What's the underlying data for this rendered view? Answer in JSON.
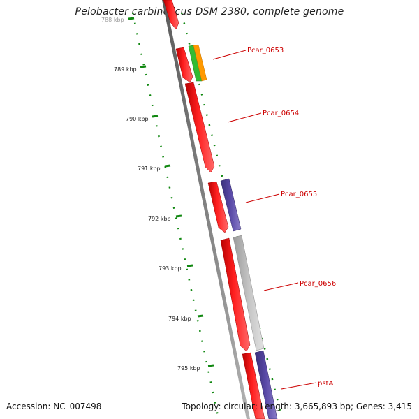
{
  "title": "Pelobacter carbinolicus DSM 2380, complete genome",
  "footer": {
    "accession": "Accession: NC_007498",
    "summary": "Topology: circular; Length: 3,665,893 bp; Genes: 3,415"
  },
  "ticks": [
    "788 kbp",
    "789 kbp",
    "790 kbp",
    "791 kbp",
    "792 kbp",
    "793 kbp",
    "794 kbp",
    "795 kbp"
  ],
  "genes": [
    {
      "name": "Pcar_0653",
      "color": "#cc0000"
    },
    {
      "name": "Pcar_0654",
      "color": "#cc0000"
    },
    {
      "name": "Pcar_0655",
      "color": "#cc0000"
    },
    {
      "name": "Pcar_0656",
      "color": "#cc0000"
    },
    {
      "name": "pstA",
      "color": "#cc0000"
    }
  ],
  "colors": {
    "cds_forward": "#ff0000",
    "rna": "#33bb33",
    "misc": "#ff9900",
    "purple": "#554499",
    "gray": "#bbbbbb",
    "backbone": "#777777",
    "gc_dots": "#118811"
  }
}
